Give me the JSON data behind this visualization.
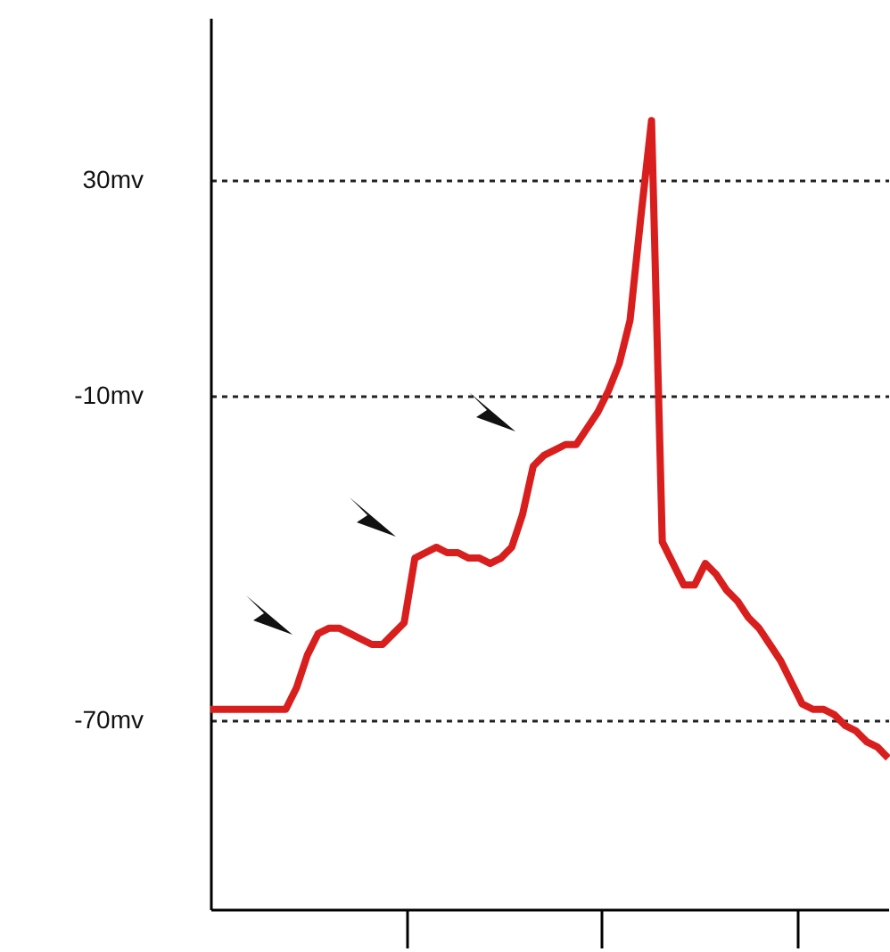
{
  "chart_data": {
    "type": "line",
    "categories": [
      null,
      null,
      null,
      null,
      null,
      null,
      null,
      null,
      null,
      null,
      null,
      null,
      null,
      null,
      null,
      null,
      null,
      null,
      null,
      null,
      null,
      null,
      null,
      null,
      null,
      null,
      null,
      null,
      null,
      null,
      null,
      null,
      null,
      null,
      null,
      null,
      null,
      null,
      null,
      null,
      null,
      null,
      null,
      null,
      null,
      null,
      null,
      null,
      null,
      null,
      null,
      null,
      null,
      null,
      null,
      null,
      null,
      null,
      null,
      null,
      null,
      null,
      null,
      null
    ],
    "series": [
      {
        "color": "#d91e1e",
        "values": [
          -68,
          -68,
          -68,
          -68,
          -68,
          -68,
          -68,
          -68,
          -64,
          -58,
          -54,
          -53,
          -53,
          -54,
          -55,
          -56,
          -56,
          -54,
          -52,
          -40,
          -39,
          -38,
          -39,
          -39,
          -40,
          -40,
          -41,
          -40,
          -38,
          -32,
          -23,
          -21,
          -20,
          -19,
          -19,
          -16,
          -13,
          -9,
          -4,
          4,
          23,
          41,
          -37,
          -41,
          -45,
          -45,
          -41,
          -43,
          -46,
          -48,
          -51,
          -53,
          -56,
          -59,
          -63,
          -67,
          -68,
          -68,
          -69,
          -71,
          -72,
          -74,
          -75,
          -77
        ]
      }
    ],
    "ylim": [
      -105,
      60
    ],
    "yticks": [
      {
        "value": 30,
        "label": "30mv"
      },
      {
        "value": -10,
        "label": "-10mv"
      },
      {
        "value": -70,
        "label": "-70mv"
      }
    ],
    "grid": "y",
    "tick_labels": "y",
    "marker": "none",
    "line_style": "solid"
  }
}
